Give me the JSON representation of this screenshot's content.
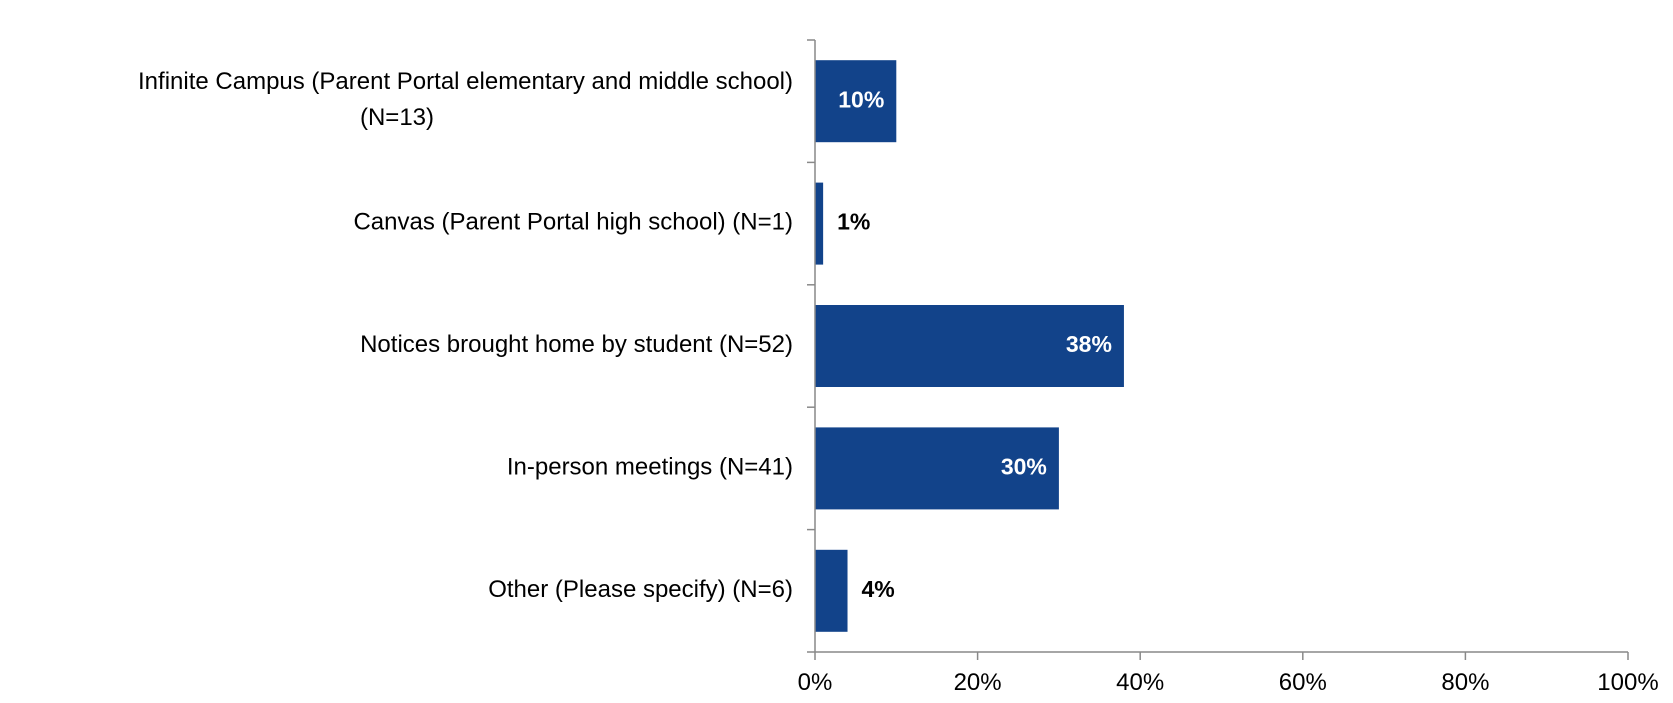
{
  "chart_data": {
    "type": "bar",
    "orientation": "horizontal",
    "title": "",
    "xlabel": "",
    "ylabel": "",
    "categories": [
      [
        "Infinite Campus (Parent Portal elementary and middle school)",
        "(N=13)"
      ],
      [
        "Canvas (Parent Portal high school) (N=1)"
      ],
      [
        "Notices brought home by student (N=52)"
      ],
      [
        "In-person meetings (N=41)"
      ],
      [
        "Other (Please specify) (N=6)"
      ]
    ],
    "values": [
      10,
      1,
      38,
      30,
      4
    ],
    "data_labels": [
      "10%",
      "1%",
      "38%",
      "30%",
      "4%"
    ],
    "xlim": [
      0,
      100
    ],
    "x_ticks": [
      0,
      20,
      40,
      60,
      80,
      100
    ],
    "x_tick_labels": [
      "0%",
      "20%",
      "40%",
      "60%",
      "80%",
      "100%"
    ],
    "grid": false,
    "legend": "none",
    "colors": {
      "bar": "#12438A",
      "label_inside": "#FFFFFF",
      "label_outside": "#000000",
      "axis": "#898989"
    }
  }
}
